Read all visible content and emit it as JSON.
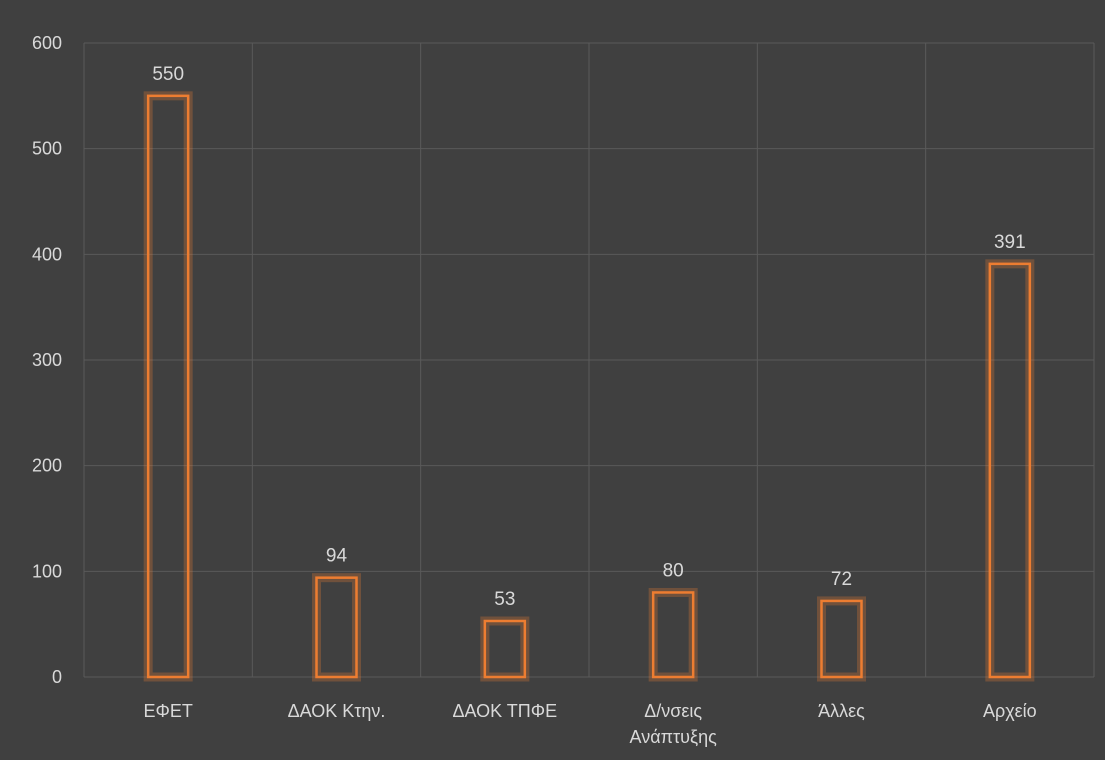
{
  "chart_data": {
    "type": "bar",
    "categories": [
      "ΕΦΕΤ",
      "ΔΑΟΚ Κτην.",
      "ΔΑΟΚ ΤΠΦΕ",
      "Δ/νσεις Ανάπτυξης",
      "Άλλες",
      "Αρχείο"
    ],
    "category_lines": [
      [
        "ΕΦΕΤ"
      ],
      [
        "ΔΑΟΚ Κτην."
      ],
      [
        "ΔΑΟΚ ΤΠΦΕ"
      ],
      [
        "Δ/νσεις",
        "Ανάπτυξης"
      ],
      [
        "Άλλες"
      ],
      [
        "Αρχείο"
      ]
    ],
    "values": [
      550,
      94,
      53,
      80,
      72,
      391
    ],
    "data_labels": [
      "550",
      "94",
      "53",
      "80",
      "72",
      "391"
    ],
    "y_ticks": [
      "0",
      "100",
      "200",
      "300",
      "400",
      "500",
      "600"
    ],
    "ylim": [
      0,
      600
    ],
    "title": "",
    "xlabel": "",
    "ylabel": "",
    "grid": true,
    "colors": {
      "background": "#404040",
      "bar_outline": "#ed7d31",
      "gridline": "#5a5a5a",
      "text": "#d9d9d9"
    }
  }
}
